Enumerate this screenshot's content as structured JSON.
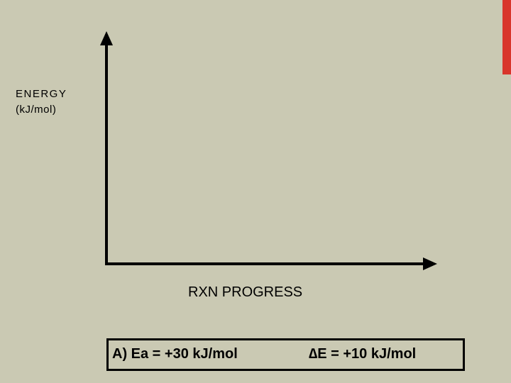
{
  "y_axis_label": {
    "line1": "ENERGY",
    "line2": "(kJ/mol)"
  },
  "x_axis_label": "RXN PROGRESS",
  "answer_box": {
    "option": "A) Ea = +30 kJ/mol",
    "delta": "∆E = +10 kJ/mol"
  }
}
